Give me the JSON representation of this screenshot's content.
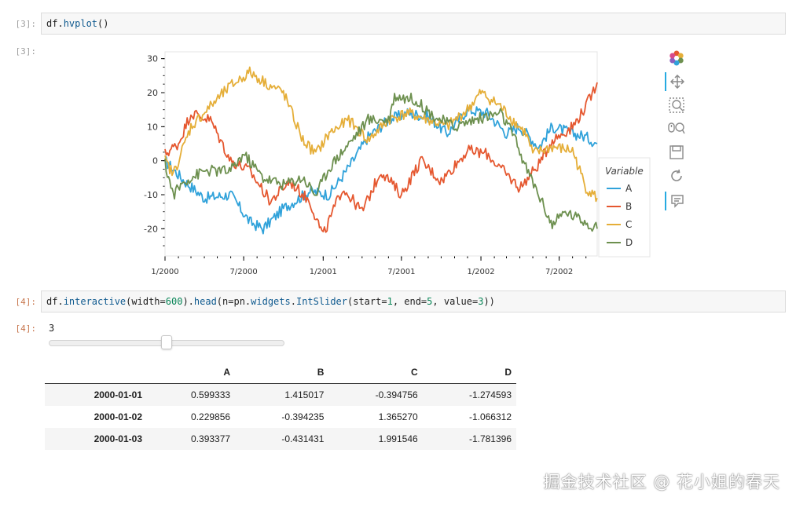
{
  "cells": [
    {
      "prompt": "[3]:",
      "code_obj": "df.",
      "code_fn": "hvplot",
      "code_rest": "()"
    },
    {
      "prompt": "[3]:"
    },
    {
      "prompt": "[4]:",
      "code_parts": [
        "df.",
        "interactive",
        "(width=",
        "600",
        ").",
        "head",
        "(n=pn.",
        "widgets",
        ".",
        "IntSlider",
        "(start=",
        "1",
        ", end=",
        "5",
        ", value=",
        "3",
        "))"
      ]
    },
    {
      "prompt": "[4]:"
    }
  ],
  "toolbar": [
    "bokeh-logo-icon",
    "pan-icon",
    "box-zoom-icon",
    "wheel-zoom-icon",
    "save-icon",
    "reset-icon",
    "hover-icon"
  ],
  "slider": {
    "value": "3",
    "start": 1,
    "end": 5,
    "current": 3
  },
  "table": {
    "columns": [
      "",
      "A",
      "B",
      "C",
      "D"
    ],
    "rows": [
      [
        "2000-01-01",
        "0.599333",
        "1.415017",
        "-0.394756",
        "-1.274593"
      ],
      [
        "2000-01-02",
        "0.229856",
        "-0.394235",
        "1.365270",
        "-1.066312"
      ],
      [
        "2000-01-03",
        "0.393377",
        "-0.431431",
        "1.991546",
        "-1.781396"
      ]
    ]
  },
  "watermark": "掘金技术社区 @ 花小姐的春天",
  "chart_data": {
    "type": "line",
    "x_tick_labels": [
      "1/2000",
      "7/2000",
      "1/2001",
      "7/2001",
      "1/2002",
      "7/2002"
    ],
    "y_ticks": [
      30,
      20,
      10,
      0,
      -10,
      -20
    ],
    "ylim": [
      -28,
      32
    ],
    "xlim": [
      "2000-01-01",
      "2002-09-27"
    ],
    "legend_title": "Variable",
    "legend_position": "right",
    "series": [
      {
        "name": "A",
        "color": "#30a2da",
        "points": [
          [
            "2000-01-01",
            0
          ],
          [
            "2000-02-15",
            -6
          ],
          [
            "2000-04-01",
            -11
          ],
          [
            "2000-06-01",
            -10
          ],
          [
            "2000-07-15",
            -18
          ],
          [
            "2000-08-15",
            -20
          ],
          [
            "2000-10-01",
            -14
          ],
          [
            "2000-12-01",
            -9
          ],
          [
            "2001-01-15",
            -10
          ],
          [
            "2001-03-01",
            -2
          ],
          [
            "2001-04-15",
            7
          ],
          [
            "2001-06-01",
            12
          ],
          [
            "2001-07-15",
            14
          ],
          [
            "2001-09-01",
            13
          ],
          [
            "2001-10-15",
            8
          ],
          [
            "2001-12-01",
            15
          ],
          [
            "2002-01-15",
            14
          ],
          [
            "2002-03-01",
            8
          ],
          [
            "2002-04-01",
            10
          ],
          [
            "2002-05-15",
            4
          ],
          [
            "2002-06-15",
            10
          ],
          [
            "2002-08-01",
            8
          ],
          [
            "2002-09-01",
            7
          ],
          [
            "2002-09-27",
            5
          ]
        ]
      },
      {
        "name": "B",
        "color": "#e5572f",
        "points": [
          [
            "2000-01-01",
            2
          ],
          [
            "2000-02-01",
            5
          ],
          [
            "2000-03-01",
            14
          ],
          [
            "2000-04-15",
            12
          ],
          [
            "2000-06-01",
            0
          ],
          [
            "2000-07-15",
            -3
          ],
          [
            "2000-09-01",
            -12
          ],
          [
            "2000-10-15",
            -6
          ],
          [
            "2000-12-01",
            -12
          ],
          [
            "2001-01-01",
            -22
          ],
          [
            "2001-02-15",
            -8
          ],
          [
            "2001-04-01",
            -15
          ],
          [
            "2001-05-15",
            -3
          ],
          [
            "2001-07-01",
            -10
          ],
          [
            "2001-08-15",
            0
          ],
          [
            "2001-10-01",
            -6
          ],
          [
            "2001-12-01",
            3
          ],
          [
            "2002-01-15",
            2
          ],
          [
            "2002-03-01",
            -4
          ],
          [
            "2002-04-01",
            -8
          ],
          [
            "2002-05-15",
            -1
          ],
          [
            "2002-06-15",
            6
          ],
          [
            "2002-08-01",
            10
          ],
          [
            "2002-09-01",
            16
          ],
          [
            "2002-09-27",
            23
          ]
        ]
      },
      {
        "name": "C",
        "color": "#e5ae38",
        "points": [
          [
            "2000-01-01",
            0
          ],
          [
            "2000-01-20",
            -4
          ],
          [
            "2000-03-01",
            10
          ],
          [
            "2000-04-15",
            16
          ],
          [
            "2000-06-01",
            22
          ],
          [
            "2000-07-15",
            26
          ],
          [
            "2000-09-01",
            22
          ],
          [
            "2000-10-01",
            20
          ],
          [
            "2000-11-15",
            6
          ],
          [
            "2000-12-15",
            2
          ],
          [
            "2001-01-15",
            8
          ],
          [
            "2001-03-01",
            12
          ],
          [
            "2001-04-15",
            6
          ],
          [
            "2001-06-01",
            12
          ],
          [
            "2001-07-15",
            14
          ],
          [
            "2001-09-01",
            12
          ],
          [
            "2001-10-15",
            10
          ],
          [
            "2001-12-01",
            15
          ],
          [
            "2002-01-01",
            20
          ],
          [
            "2002-02-15",
            16
          ],
          [
            "2002-03-15",
            12
          ],
          [
            "2002-04-15",
            8
          ],
          [
            "2002-05-01",
            2
          ],
          [
            "2002-06-15",
            4
          ],
          [
            "2002-08-01",
            3
          ],
          [
            "2002-09-01",
            -8
          ],
          [
            "2002-09-27",
            -11
          ]
        ]
      },
      {
        "name": "D",
        "color": "#6d904f",
        "points": [
          [
            "2000-01-01",
            -1
          ],
          [
            "2000-01-20",
            -10
          ],
          [
            "2000-02-15",
            -6
          ],
          [
            "2000-04-01",
            -3
          ],
          [
            "2000-06-01",
            -3
          ],
          [
            "2000-07-01",
            2
          ],
          [
            "2000-08-15",
            -5
          ],
          [
            "2000-10-01",
            -7
          ],
          [
            "2000-11-15",
            -5
          ],
          [
            "2000-12-15",
            -10
          ],
          [
            "2001-01-15",
            -2
          ],
          [
            "2001-03-01",
            5
          ],
          [
            "2001-04-15",
            12
          ],
          [
            "2001-06-01",
            12
          ],
          [
            "2001-06-15",
            19
          ],
          [
            "2001-08-01",
            18
          ],
          [
            "2001-09-15",
            13
          ],
          [
            "2001-11-01",
            10
          ],
          [
            "2001-12-15",
            12
          ],
          [
            "2002-02-15",
            14
          ],
          [
            "2002-03-15",
            8
          ],
          [
            "2002-04-15",
            -2
          ],
          [
            "2002-05-15",
            -10
          ],
          [
            "2002-06-15",
            -19
          ],
          [
            "2002-07-15",
            -15
          ],
          [
            "2002-09-01",
            -18
          ],
          [
            "2002-09-27",
            -20
          ]
        ]
      }
    ]
  }
}
